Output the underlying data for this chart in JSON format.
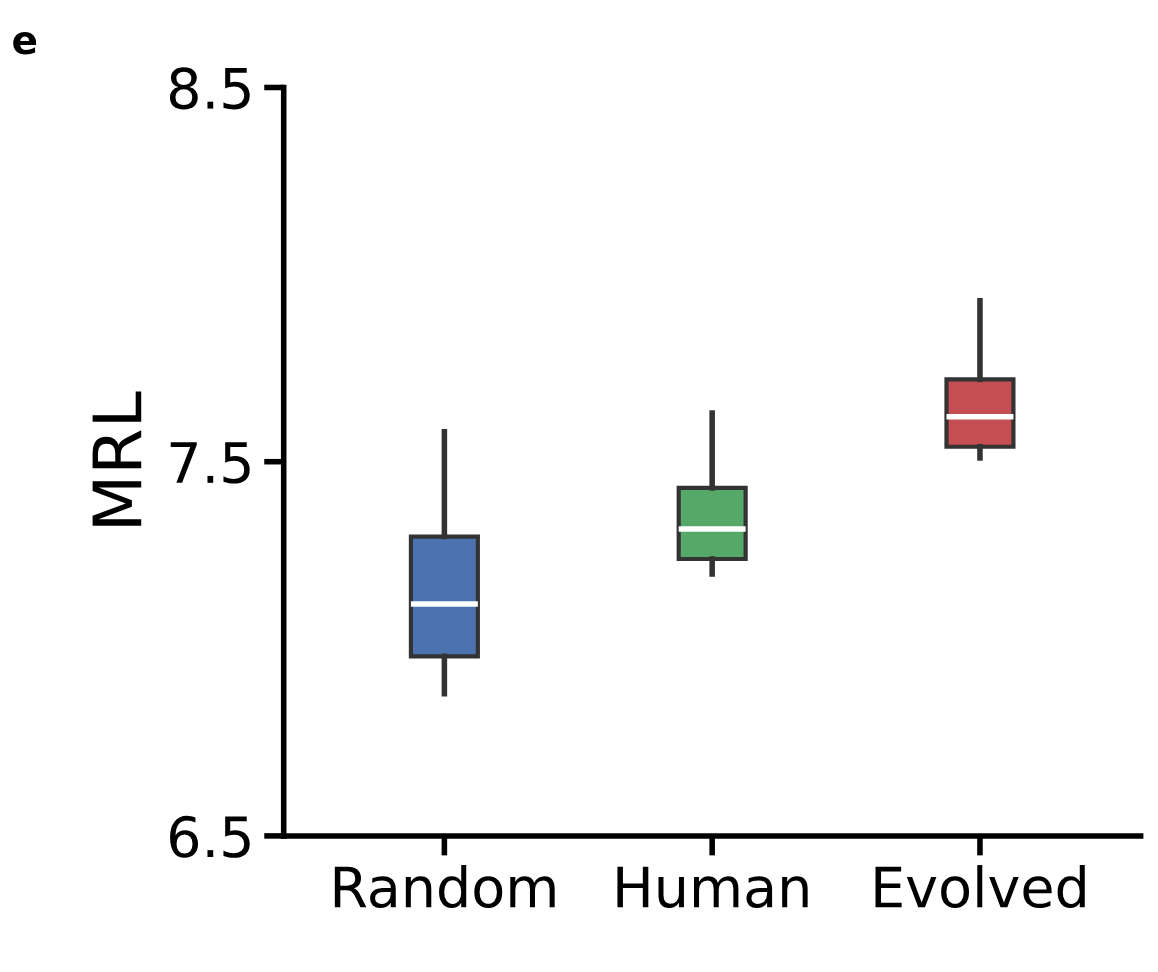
{
  "chart_data": {
    "type": "box",
    "title": "e",
    "ylabel": "MRL",
    "categories": [
      "Random",
      "Human",
      "Evolved"
    ],
    "colors": [
      "#4c72b0",
      "#55a868",
      "#c44e52"
    ],
    "boxes": [
      {
        "low": 6.88,
        "q1": 6.98,
        "median": 7.12,
        "q3": 7.3,
        "high": 7.58
      },
      {
        "low": 7.2,
        "q1": 7.24,
        "median": 7.32,
        "q3": 7.43,
        "high": 7.63
      },
      {
        "low": 7.51,
        "q1": 7.54,
        "median": 7.62,
        "q3": 7.72,
        "high": 7.93
      }
    ],
    "ylim": [
      6.5,
      8.5
    ],
    "yticks": [
      6.5,
      7.5,
      8.5
    ],
    "grid": false,
    "legend": false
  }
}
